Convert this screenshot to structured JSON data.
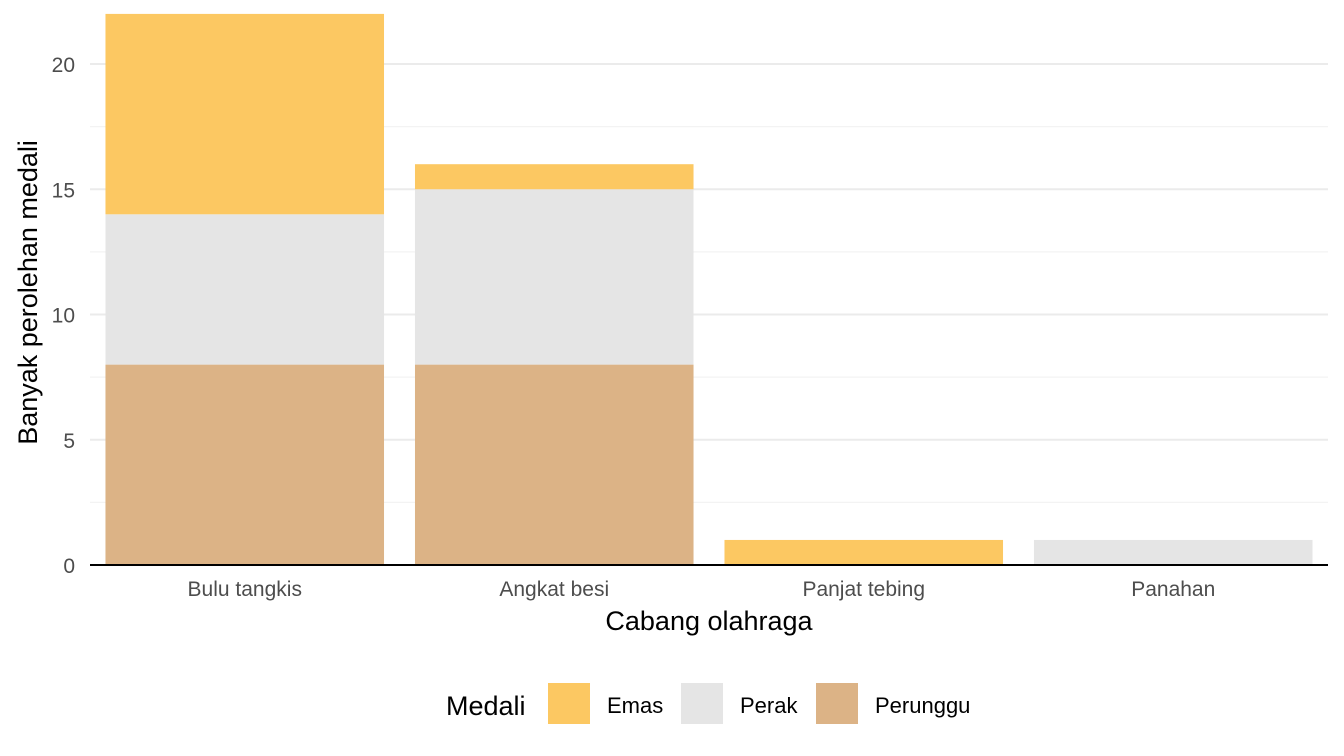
{
  "chart_data": {
    "type": "bar",
    "stacked": true,
    "categories": [
      "Bulu tangkis",
      "Angkat besi",
      "Panjat tebing",
      "Panahan"
    ],
    "series": [
      {
        "name": "Emas",
        "color": "#FCC862",
        "values": [
          8,
          1,
          1,
          0
        ]
      },
      {
        "name": "Perak",
        "color": "#E5E5E5",
        "values": [
          6,
          7,
          0,
          1
        ]
      },
      {
        "name": "Perunggu",
        "color": "#DCB386",
        "values": [
          8,
          8,
          0,
          0
        ]
      }
    ],
    "stack_order_bottom_to_top": [
      "Perunggu",
      "Perak",
      "Emas"
    ],
    "xlabel": "Cabang olahraga",
    "ylabel": "Banyak perolehan medali",
    "ylim": [
      0,
      22
    ],
    "yticks": [
      "0",
      "5",
      "10",
      "15",
      "20"
    ],
    "grid": true,
    "legend": {
      "title": "Medali",
      "position": "bottom",
      "items": [
        "Emas",
        "Perak",
        "Perunggu"
      ]
    }
  }
}
